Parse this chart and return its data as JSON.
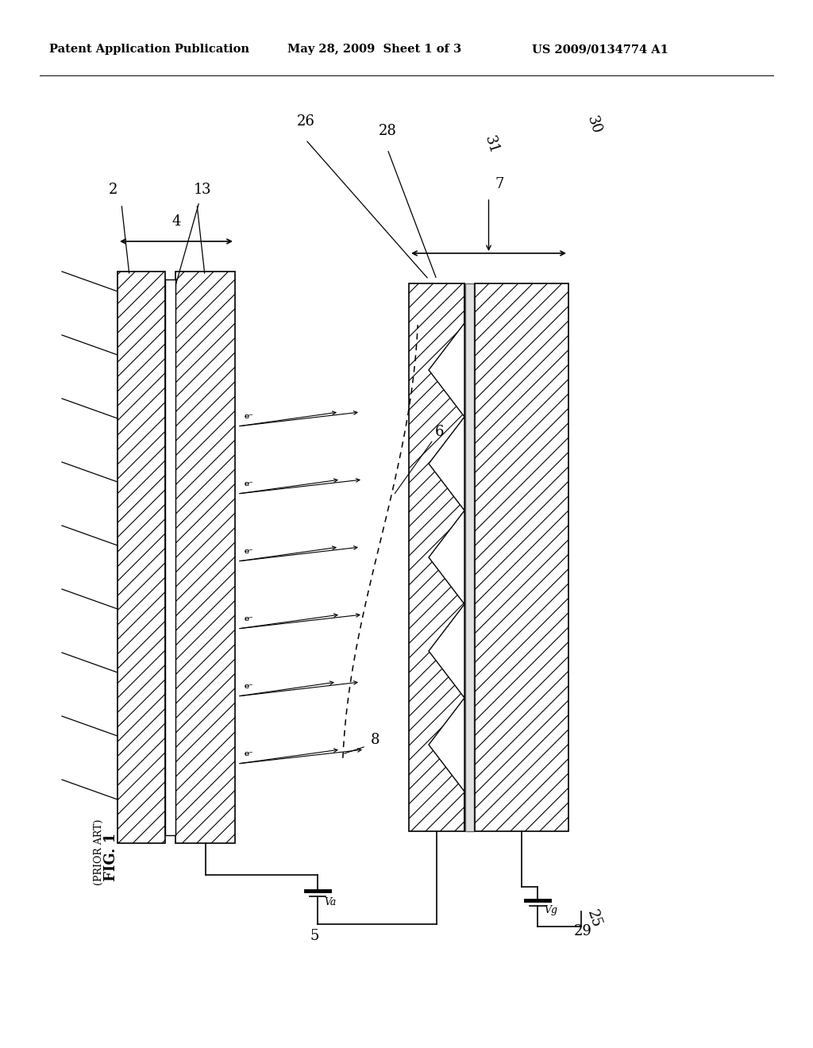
{
  "header_left": "Patent Application Publication",
  "header_mid": "May 28, 2009  Sheet 1 of 3",
  "header_right": "US 2009/0134774 A1",
  "fig_label": "FIG. 1",
  "fig_sublabel": "(PRIOR ART)",
  "bg_color": "#ffffff"
}
